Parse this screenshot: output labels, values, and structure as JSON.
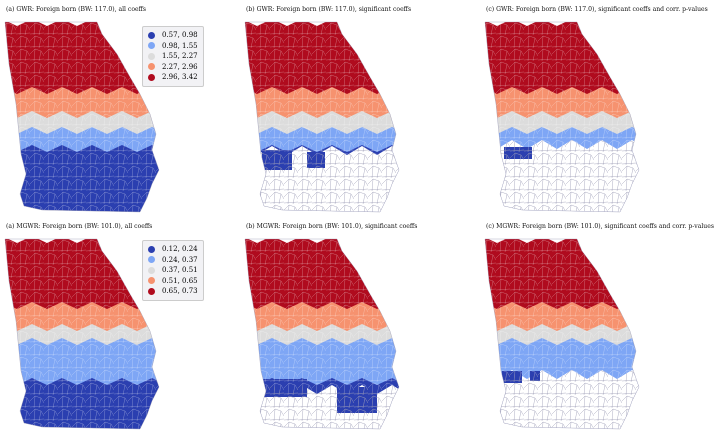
{
  "panels": [
    {
      "title": "(a) GWR: Foreign born (BW: 117.0), all coeffs",
      "legend": [
        "0.57, 0.98",
        "0.98, 1.55",
        "1.55, 2.27",
        "2.27, 2.96",
        "2.96, 3.42"
      ]
    },
    {
      "title": "(b) GWR: Foreign born (BW: 117.0), significant coeffs"
    },
    {
      "title": "(c) GWR: Foreign born (BW: 117.0), significant coeffs and corr. p-values"
    },
    {
      "title": "(a) MGWR: Foreign born (BW: 101.0), all coeffs",
      "legend": [
        "0.12, 0.24",
        "0.24, 0.37",
        "0.37, 0.51",
        "0.51, 0.65",
        "0.65, 0.73"
      ]
    },
    {
      "title": "(b) MGWR: Foreign born (BW: 101.0), significant coeffs"
    },
    {
      "title": "(c) MGWR: Foreign born (BW: 101.0), significant coeffs and corr. p-values"
    }
  ],
  "colors": [
    "#2b3fb0",
    "#7ea6f5",
    "#dcdcdc",
    "#f6926f",
    "#b00b1e"
  ]
}
